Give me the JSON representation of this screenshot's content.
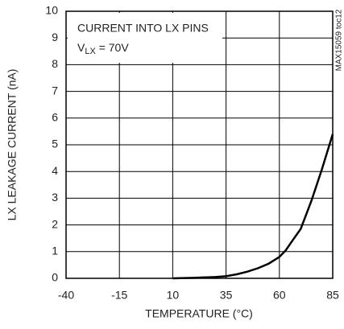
{
  "chart_data": {
    "type": "line",
    "x_label": "TEMPERATURE (°C)",
    "y_label": "LX LEAKAGE CURRENT (nA)",
    "annotation": {
      "line1": "CURRENT INTO LX PINS",
      "symbol": "V",
      "subscript": "LX",
      "equation": " = 70V"
    },
    "side_note": "MAX15059 toc12",
    "x": [
      10,
      20,
      30,
      35,
      40,
      45,
      50,
      55,
      60,
      63,
      66,
      70,
      75,
      80,
      85
    ],
    "values": [
      0,
      0.02,
      0.05,
      0.08,
      0.15,
      0.25,
      0.38,
      0.55,
      0.8,
      1.05,
      1.4,
      1.85,
      2.9,
      4.1,
      5.4
    ],
    "color": "#000000",
    "xlim": [
      -40,
      85
    ],
    "xticks": [
      -40,
      -15,
      10,
      35,
      60,
      85
    ],
    "ylim": [
      0,
      10
    ],
    "yticks": [
      0,
      1,
      2,
      3,
      4,
      5,
      6,
      7,
      8,
      9,
      10
    ],
    "grid": true
  }
}
